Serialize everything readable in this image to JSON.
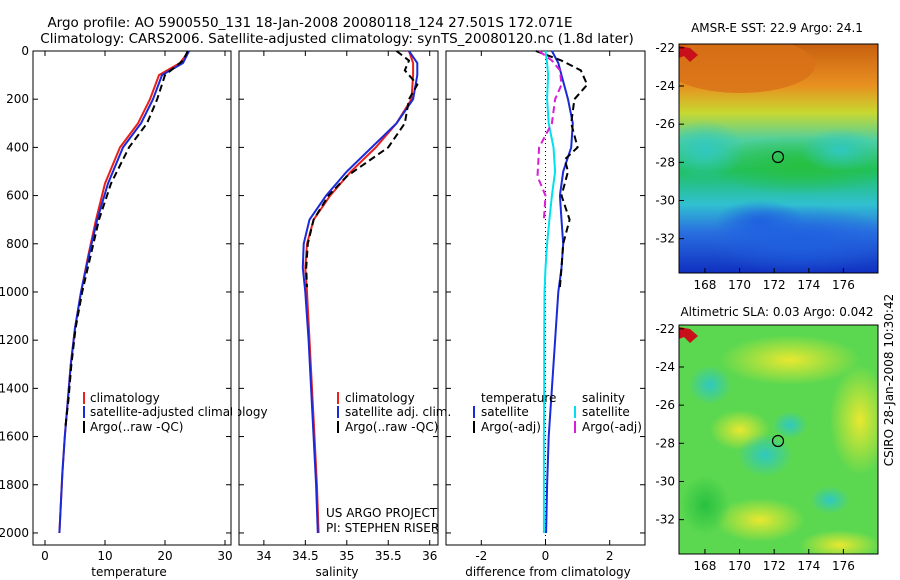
{
  "title": {
    "line1": "Argo profile: AO 5900550_131 18-Jan-2008 20080118_124 27.501S 172.071E",
    "line2": "Climatology: CARS2006. Satellite-adjusted climatology: synTS_20080120.nc (1.8d later)"
  },
  "chart_data": [
    {
      "type": "line",
      "id": "temperature",
      "xlabel": "temperature",
      "ylabel": "",
      "xlim": [
        -2,
        31
      ],
      "ylim": [
        2050,
        0
      ],
      "xticks": [
        0,
        10,
        20,
        30
      ],
      "xtick_labels": [
        "0",
        "10",
        "20",
        "30"
      ],
      "yticks": [
        0,
        200,
        400,
        600,
        800,
        1000,
        1200,
        1400,
        1600,
        1800,
        2000
      ],
      "ytick_labels": [
        "0",
        "200",
        "400",
        "600",
        "800",
        "1000",
        "1200",
        "1400",
        "1600",
        "1800",
        "2000"
      ],
      "legend": [
        "climatology",
        "satellite-adjusted climatology",
        "Argo(..raw -QC)"
      ],
      "series": [
        {
          "name": "climatology",
          "color": "#e8221a",
          "dash": "none",
          "x": [
            24,
            22.5,
            19,
            17.5,
            15.5,
            12.5,
            10,
            8.5,
            7.2,
            6,
            5,
            4.3,
            3.8,
            3.3,
            2.9,
            2.6,
            2.4
          ],
          "y": [
            0,
            50,
            100,
            200,
            300,
            400,
            550,
            700,
            850,
            1000,
            1150,
            1300,
            1450,
            1600,
            1750,
            1900,
            2000
          ]
        },
        {
          "name": "satellite-adjusted climatology",
          "color": "#1a2ad8",
          "dash": "none",
          "x": [
            24,
            23,
            19.5,
            18,
            16,
            13,
            10.5,
            8.7,
            7.3,
            6,
            5,
            4.3,
            3.8,
            3.3,
            2.9,
            2.6,
            2.4
          ],
          "y": [
            0,
            50,
            100,
            200,
            300,
            400,
            550,
            700,
            850,
            1000,
            1150,
            1300,
            1450,
            1600,
            1750,
            1900,
            2000
          ]
        },
        {
          "name": "Argo(..raw -QC)",
          "color": "#000000",
          "dash": "7,4",
          "x": [
            23.8,
            23,
            20,
            18.7,
            17,
            14,
            11,
            9,
            7.6,
            6.2,
            5.1,
            4.4,
            3.9,
            3.4
          ],
          "y": [
            0,
            40,
            100,
            200,
            300,
            400,
            550,
            700,
            850,
            1000,
            1150,
            1300,
            1450,
            1560
          ]
        }
      ]
    },
    {
      "type": "line",
      "id": "salinity",
      "xlabel": "salinity",
      "xlim": [
        33.7,
        36.1
      ],
      "ylim": [
        2050,
        0
      ],
      "xticks": [
        34,
        34.5,
        35,
        35.5,
        36
      ],
      "xtick_labels": [
        "34",
        "34.5",
        "35",
        "35.5",
        "36"
      ],
      "legend": [
        "climatology",
        "satellite adj. clim.",
        "Argo(..raw -QC)"
      ],
      "note": [
        "US ARGO PROJECT",
        "PI: STEPHEN RISER"
      ],
      "series": [
        {
          "name": "climatology",
          "color": "#e8221a",
          "dash": "none",
          "x": [
            35.75,
            35.8,
            35.8,
            35.78,
            35.6,
            35.35,
            35.05,
            34.8,
            34.6,
            34.52,
            34.5,
            34.52,
            34.55,
            34.58,
            34.61,
            34.64,
            34.66
          ],
          "y": [
            0,
            50,
            100,
            200,
            300,
            400,
            500,
            600,
            700,
            800,
            900,
            1000,
            1200,
            1400,
            1600,
            1800,
            2000
          ]
        },
        {
          "name": "satellite adj. clim.",
          "color": "#1a2ad8",
          "dash": "none",
          "x": [
            35.75,
            35.85,
            35.85,
            35.8,
            35.6,
            35.3,
            35.0,
            34.75,
            34.55,
            34.48,
            34.47,
            34.5,
            34.54,
            34.57,
            34.6,
            34.63,
            34.65
          ],
          "y": [
            0,
            50,
            100,
            200,
            300,
            400,
            500,
            600,
            700,
            800,
            900,
            1000,
            1200,
            1400,
            1600,
            1800,
            2000
          ]
        },
        {
          "name": "Argo(..raw -QC)",
          "color": "#000000",
          "dash": "7,4",
          "x": [
            35.6,
            35.75,
            35.7,
            35.85,
            35.75,
            35.7,
            35.5,
            35.25,
            35.0,
            34.78,
            34.6,
            34.53,
            34.51,
            34.52
          ],
          "y": [
            0,
            40,
            80,
            140,
            200,
            300,
            400,
            460,
            520,
            600,
            700,
            800,
            900,
            980
          ]
        }
      ]
    },
    {
      "type": "line",
      "id": "difference",
      "xlabel": "difference from climatology",
      "xlim": [
        -3.1,
        3.1
      ],
      "ylim": [
        2050,
        0
      ],
      "xticks": [
        -2,
        0,
        2
      ],
      "xtick_labels": [
        "-2",
        "0",
        "2"
      ],
      "legend_headers": [
        "temperature",
        "salinity"
      ],
      "legend": [
        "satellite",
        "Argo(-adj)",
        "satellite",
        "Argo(-adj)"
      ],
      "series": [
        {
          "name": "temperature satellite",
          "color": "#1a2ad8",
          "dash": "none",
          "x": [
            0.2,
            0.4,
            0.5,
            0.7,
            0.85,
            0.8,
            0.55,
            0.45,
            0.5,
            0.55,
            0.5,
            0.4,
            0.3,
            0.2,
            0.1,
            0.05,
            0.02
          ],
          "y": [
            0,
            50,
            100,
            200,
            300,
            400,
            500,
            600,
            700,
            800,
            900,
            1000,
            1200,
            1400,
            1600,
            1800,
            2000
          ]
        },
        {
          "name": "temperature Argo(-adj)",
          "color": "#000000",
          "dash": "7,4",
          "x": [
            -0.3,
            0.5,
            1.1,
            1.3,
            0.9,
            0.8,
            1.0,
            0.6,
            0.7,
            0.5,
            0.75,
            0.55,
            0.5,
            0.45
          ],
          "y": [
            0,
            40,
            80,
            140,
            200,
            300,
            400,
            450,
            500,
            600,
            700,
            800,
            900,
            980
          ]
        },
        {
          "name": "salinity satellite",
          "color": "#00e0ee",
          "dash": "none",
          "x": [
            0.0,
            0.05,
            0.08,
            0.05,
            0.1,
            0.25,
            0.3,
            0.2,
            0.12,
            0.05,
            0.0,
            -0.03,
            -0.04,
            -0.04,
            -0.05,
            -0.05
          ],
          "y": [
            0,
            50,
            100,
            200,
            300,
            400,
            500,
            600,
            700,
            800,
            900,
            1000,
            1200,
            1400,
            1600,
            2000
          ]
        },
        {
          "name": "salinity Argo(-adj)",
          "color": "#d61fd6",
          "dash": "7,4",
          "x": [
            -0.2,
            0.2,
            0.45,
            0.5,
            0.3,
            0.2,
            -0.2,
            -0.25,
            0.0,
            -0.05
          ],
          "y": [
            0,
            40,
            80,
            140,
            200,
            300,
            400,
            520,
            600,
            700
          ]
        }
      ]
    },
    {
      "type": "heatmap",
      "id": "sst-map",
      "title": "AMSR-E SST: 22.9 Argo: 24.1",
      "xticks": [
        168,
        170,
        172,
        174,
        176
      ],
      "xtick_labels": [
        "168",
        "170",
        "172",
        "174",
        "176"
      ],
      "yticks": [
        -22,
        -24,
        -26,
        -28,
        -30,
        -32
      ],
      "ytick_labels": [
        "-22",
        "-24",
        "-26",
        "-28",
        "-30",
        "-32"
      ],
      "xlim": [
        166.5,
        178
      ],
      "ylim": [
        -33.8,
        -21.8
      ],
      "marker": {
        "lon": 172.071,
        "lat": -27.501
      }
    },
    {
      "type": "heatmap",
      "id": "sla-map",
      "title": "Altimetric SLA: 0.03 Argo: 0.042",
      "xticks": [
        168,
        170,
        172,
        174,
        176
      ],
      "xtick_labels": [
        "168",
        "170",
        "172",
        "174",
        "176"
      ],
      "yticks": [
        -22,
        -24,
        -26,
        -28,
        -30,
        -32
      ],
      "ytick_labels": [
        "-22",
        "-24",
        "-26",
        "-28",
        "-30",
        "-32"
      ],
      "xlim": [
        166.5,
        178
      ],
      "ylim": [
        -33.8,
        -21.8
      ],
      "marker": {
        "lon": 172.071,
        "lat": -27.501
      }
    }
  ],
  "side_label": "CSIRO 28-Jan-2008 10:30:42",
  "colors": {
    "sst_top": "#e07a10",
    "sst_mid": "#30d060",
    "sst_bottom": "#1a48d8",
    "sla_base": "#5cd850"
  }
}
